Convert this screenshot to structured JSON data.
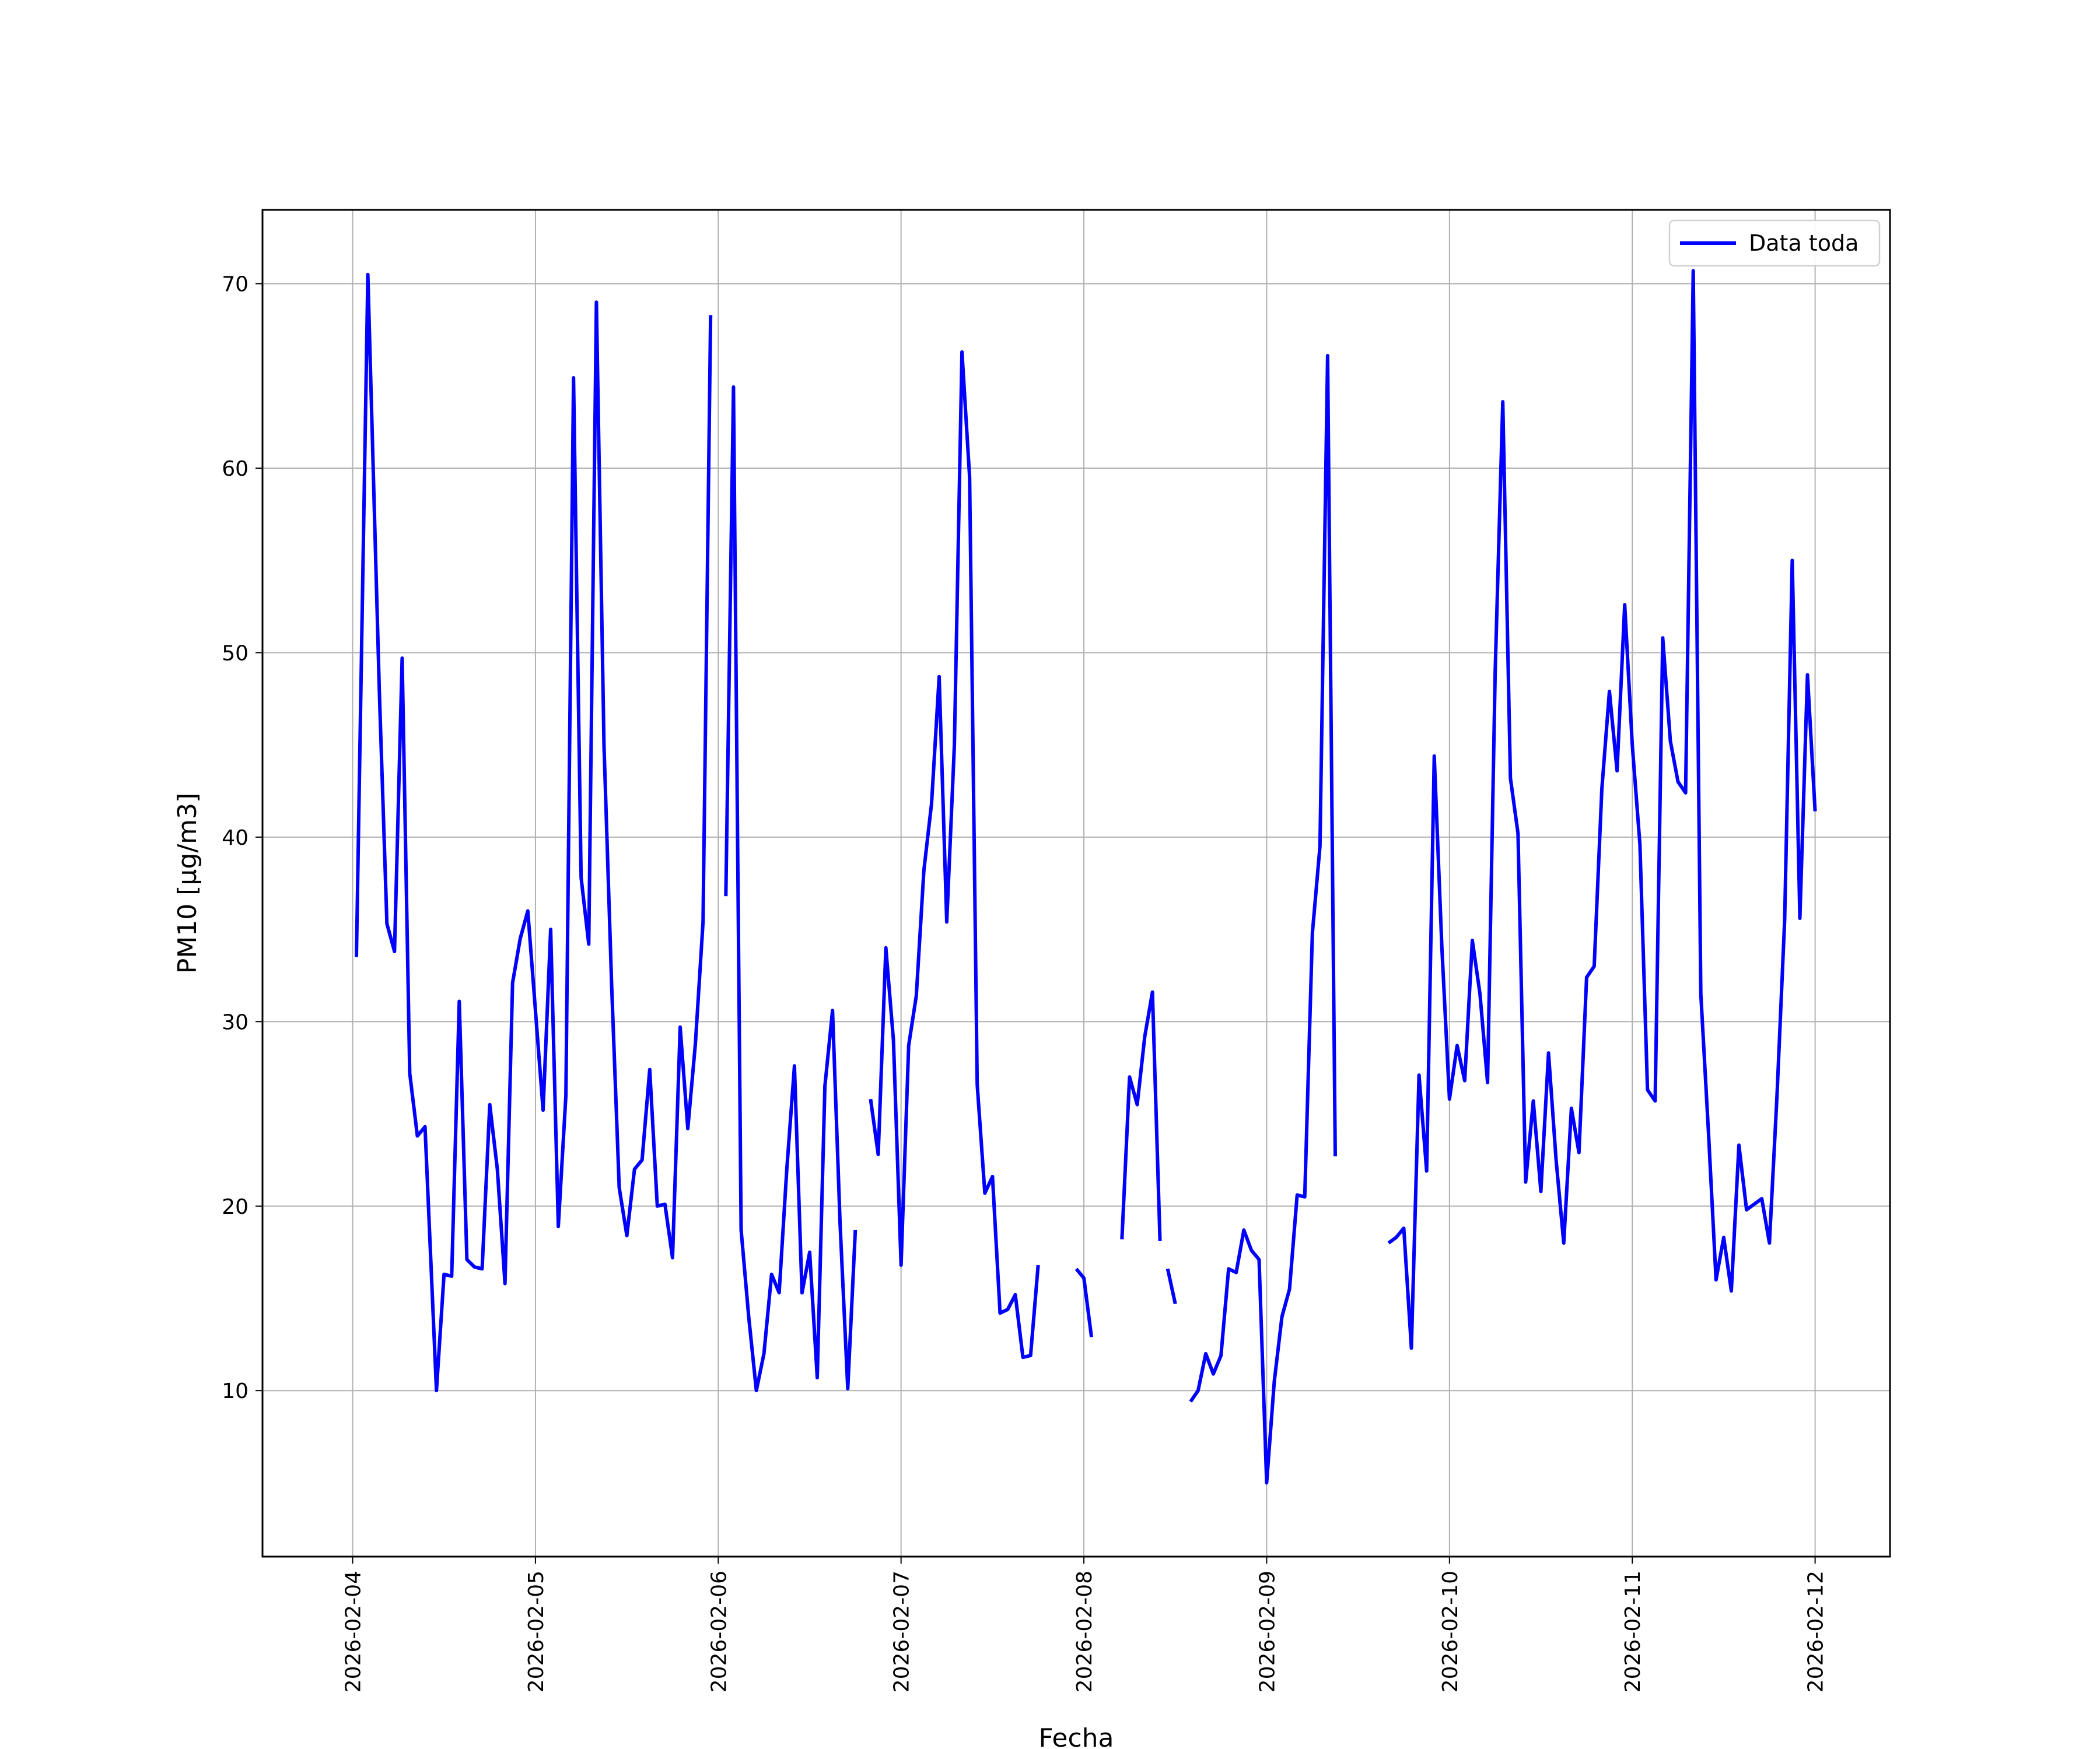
{
  "chart_data": {
    "type": "line",
    "xlabel": "Fecha",
    "ylabel": "PM10 [μg/m3]",
    "x_ticks": [
      "2026-02-04",
      "2026-02-05",
      "2026-02-06",
      "2026-02-07",
      "2026-02-08",
      "2026-02-09",
      "2026-02-10",
      "2026-02-11",
      "2026-02-12"
    ],
    "y_ticks": [
      10,
      20,
      30,
      40,
      50,
      60,
      70
    ],
    "xlim": [
      "2026-02-03T12:10",
      "2026-02-12T09:50"
    ],
    "ylim": [
      1.0,
      74.0
    ],
    "grid": true,
    "legend_position": "top-right",
    "series": [
      {
        "name": "Data toda",
        "color": "#0000ff",
        "segments": [
          [
            [
              "2026-02-04T00:30",
              33.5
            ],
            [
              "2026-02-04T02:00",
              70.5
            ],
            [
              "2026-02-04T03:30",
              48.0
            ],
            [
              "2026-02-04T04:30",
              35.3
            ],
            [
              "2026-02-04T05:30",
              33.8
            ],
            [
              "2026-02-04T06:30",
              49.7
            ],
            [
              "2026-02-04T07:30",
              27.2
            ],
            [
              "2026-02-04T08:30",
              23.8
            ],
            [
              "2026-02-04T09:30",
              24.3
            ],
            [
              "2026-02-04T11:00",
              10.0
            ],
            [
              "2026-02-04T12:00",
              16.3
            ],
            [
              "2026-02-04T13:00",
              16.2
            ],
            [
              "2026-02-04T14:00",
              31.1
            ],
            [
              "2026-02-04T15:00",
              17.1
            ],
            [
              "2026-02-04T16:00",
              16.7
            ],
            [
              "2026-02-04T17:00",
              16.6
            ],
            [
              "2026-02-04T18:00",
              25.5
            ],
            [
              "2026-02-04T19:00",
              22.0
            ],
            [
              "2026-02-04T20:00",
              15.8
            ],
            [
              "2026-02-04T21:00",
              32.1
            ],
            [
              "2026-02-04T22:00",
              34.5
            ],
            [
              "2026-02-04T23:00",
              36.0
            ],
            [
              "2026-02-05T01:00",
              25.2
            ],
            [
              "2026-02-05T02:00",
              35.0
            ],
            [
              "2026-02-05T03:00",
              18.9
            ],
            [
              "2026-02-05T04:00",
              26.0
            ],
            [
              "2026-02-05T05:00",
              64.9
            ],
            [
              "2026-02-05T06:00",
              37.8
            ],
            [
              "2026-02-05T07:00",
              34.2
            ],
            [
              "2026-02-05T08:00",
              69.0
            ],
            [
              "2026-02-05T09:00",
              45.0
            ],
            [
              "2026-02-05T10:00",
              32.0
            ],
            [
              "2026-02-05T11:00",
              21.0
            ],
            [
              "2026-02-05T12:00",
              18.4
            ],
            [
              "2026-02-05T13:00",
              22.0
            ],
            [
              "2026-02-05T14:00",
              22.5
            ],
            [
              "2026-02-05T15:00",
              27.4
            ],
            [
              "2026-02-05T16:00",
              20.0
            ],
            [
              "2026-02-05T17:00",
              20.1
            ],
            [
              "2026-02-05T18:00",
              17.2
            ],
            [
              "2026-02-05T19:00",
              29.7
            ],
            [
              "2026-02-05T20:00",
              24.2
            ],
            [
              "2026-02-05T21:00",
              28.8
            ],
            [
              "2026-02-05T22:00",
              35.4
            ],
            [
              "2026-02-05T23:00",
              68.3
            ]
          ],
          [
            [
              "2026-02-06T01:00",
              36.8
            ],
            [
              "2026-02-06T02:00",
              64.4
            ],
            [
              "2026-02-06T03:00",
              18.7
            ],
            [
              "2026-02-06T04:00",
              14.0
            ],
            [
              "2026-02-06T05:00",
              10.0
            ],
            [
              "2026-02-06T06:00",
              12.0
            ],
            [
              "2026-02-06T07:00",
              16.3
            ],
            [
              "2026-02-06T08:00",
              15.3
            ],
            [
              "2026-02-06T09:00",
              22.0
            ],
            [
              "2026-02-06T10:00",
              27.6
            ],
            [
              "2026-02-06T11:00",
              15.3
            ],
            [
              "2026-02-06T12:00",
              17.5
            ],
            [
              "2026-02-06T13:00",
              10.7
            ],
            [
              "2026-02-06T14:00",
              26.5
            ],
            [
              "2026-02-06T15:00",
              30.6
            ],
            [
              "2026-02-06T16:00",
              19.0
            ],
            [
              "2026-02-06T17:00",
              10.1
            ],
            [
              "2026-02-06T18:00",
              18.7
            ]
          ],
          [
            [
              "2026-02-06T20:00",
              25.8
            ],
            [
              "2026-02-06T21:00",
              22.8
            ],
            [
              "2026-02-06T22:00",
              34.0
            ],
            [
              "2026-02-06T23:00",
              29.0
            ],
            [
              "2026-02-07T00:00",
              16.8
            ],
            [
              "2026-02-07T01:00",
              28.7
            ],
            [
              "2026-02-07T02:00",
              31.4
            ],
            [
              "2026-02-07T03:00",
              38.2
            ],
            [
              "2026-02-07T04:00",
              41.8
            ],
            [
              "2026-02-07T05:00",
              48.7
            ],
            [
              "2026-02-07T06:00",
              35.4
            ],
            [
              "2026-02-07T07:00",
              45.0
            ],
            [
              "2026-02-07T08:00",
              66.3
            ],
            [
              "2026-02-07T09:00",
              59.5
            ],
            [
              "2026-02-07T10:00",
              26.6
            ],
            [
              "2026-02-07T11:00",
              20.7
            ],
            [
              "2026-02-07T12:00",
              21.6
            ],
            [
              "2026-02-07T13:00",
              14.2
            ],
            [
              "2026-02-07T14:00",
              14.4
            ],
            [
              "2026-02-07T15:00",
              15.2
            ],
            [
              "2026-02-07T16:00",
              11.8
            ],
            [
              "2026-02-07T17:00",
              11.9
            ],
            [
              "2026-02-07T18:00",
              16.8
            ]
          ],
          [
            [
              "2026-02-07T23:00",
              16.6
            ],
            [
              "2026-02-08T00:00",
              16.1
            ],
            [
              "2026-02-08T01:00",
              12.9
            ]
          ],
          [
            [
              "2026-02-08T05:00",
              18.2
            ],
            [
              "2026-02-08T06:00",
              27.0
            ],
            [
              "2026-02-08T07:00",
              25.5
            ],
            [
              "2026-02-08T08:00",
              29.2
            ],
            [
              "2026-02-08T09:00",
              31.6
            ],
            [
              "2026-02-08T10:00",
              18.1
            ]
          ],
          [
            [
              "2026-02-08T11:00",
              16.6
            ],
            [
              "2026-02-08T12:00",
              14.7
            ]
          ],
          [
            [
              "2026-02-08T14:00",
              9.4
            ],
            [
              "2026-02-08T15:00",
              10.0
            ],
            [
              "2026-02-08T16:00",
              12.0
            ],
            [
              "2026-02-08T17:00",
              10.9
            ],
            [
              "2026-02-08T18:00",
              11.9
            ],
            [
              "2026-02-08T19:00",
              16.6
            ],
            [
              "2026-02-08T20:00",
              16.4
            ],
            [
              "2026-02-08T21:00",
              18.7
            ],
            [
              "2026-02-08T22:00",
              17.6
            ],
            [
              "2026-02-08T23:00",
              17.1
            ],
            [
              "2026-02-09T00:00",
              5.0
            ],
            [
              "2026-02-09T01:00",
              10.5
            ],
            [
              "2026-02-09T02:00",
              14.0
            ],
            [
              "2026-02-09T03:00",
              15.5
            ],
            [
              "2026-02-09T04:00",
              20.6
            ],
            [
              "2026-02-09T05:00",
              20.5
            ],
            [
              "2026-02-09T06:00",
              34.8
            ],
            [
              "2026-02-09T07:00",
              39.5
            ],
            [
              "2026-02-09T08:00",
              66.1
            ],
            [
              "2026-02-09T09:00",
              22.7
            ]
          ],
          [
            [
              "2026-02-09T16:00",
              18.0
            ],
            [
              "2026-02-09T17:00",
              18.3
            ],
            [
              "2026-02-09T18:00",
              18.8
            ],
            [
              "2026-02-09T19:00",
              12.3
            ],
            [
              "2026-02-09T20:00",
              27.1
            ],
            [
              "2026-02-09T21:00",
              21.9
            ],
            [
              "2026-02-09T22:00",
              44.4
            ],
            [
              "2026-02-09T23:00",
              34.0
            ],
            [
              "2026-02-10T00:00",
              25.8
            ],
            [
              "2026-02-10T01:00",
              28.7
            ],
            [
              "2026-02-10T02:00",
              26.8
            ],
            [
              "2026-02-10T03:00",
              34.4
            ],
            [
              "2026-02-10T04:00",
              31.5
            ],
            [
              "2026-02-10T05:00",
              26.7
            ],
            [
              "2026-02-10T06:00",
              49.0
            ],
            [
              "2026-02-10T07:00",
              63.6
            ],
            [
              "2026-02-10T08:00",
              43.2
            ],
            [
              "2026-02-10T09:00",
              40.2
            ],
            [
              "2026-02-10T10:00",
              21.3
            ],
            [
              "2026-02-10T11:00",
              25.7
            ],
            [
              "2026-02-10T12:00",
              20.8
            ],
            [
              "2026-02-10T13:00",
              28.3
            ],
            [
              "2026-02-10T14:00",
              22.5
            ],
            [
              "2026-02-10T15:00",
              18.0
            ],
            [
              "2026-02-10T16:00",
              25.3
            ],
            [
              "2026-02-10T17:00",
              22.9
            ],
            [
              "2026-02-10T18:00",
              32.4
            ],
            [
              "2026-02-10T19:00",
              33.0
            ],
            [
              "2026-02-10T20:00",
              42.6
            ],
            [
              "2026-02-10T21:00",
              47.9
            ],
            [
              "2026-02-10T22:00",
              43.6
            ],
            [
              "2026-02-10T23:00",
              52.6
            ],
            [
              "2026-02-11T00:00",
              45.0
            ],
            [
              "2026-02-11T01:00",
              39.6
            ],
            [
              "2026-02-11T02:00",
              26.3
            ],
            [
              "2026-02-11T03:00",
              25.7
            ],
            [
              "2026-02-11T04:00",
              50.8
            ],
            [
              "2026-02-11T05:00",
              45.2
            ],
            [
              "2026-02-11T06:00",
              43.0
            ],
            [
              "2026-02-11T07:00",
              42.4
            ],
            [
              "2026-02-11T08:00",
              70.7
            ],
            [
              "2026-02-11T09:00",
              31.5
            ],
            [
              "2026-02-11T10:00",
              24.0
            ],
            [
              "2026-02-11T11:00",
              16.0
            ],
            [
              "2026-02-11T12:00",
              18.3
            ],
            [
              "2026-02-11T13:00",
              15.4
            ],
            [
              "2026-02-11T14:00",
              23.3
            ],
            [
              "2026-02-11T15:00",
              19.8
            ],
            [
              "2026-02-11T16:00",
              20.1
            ],
            [
              "2026-02-11T17:00",
              20.4
            ],
            [
              "2026-02-11T18:00",
              18.0
            ],
            [
              "2026-02-11T19:00",
              26.0
            ],
            [
              "2026-02-11T20:00",
              35.5
            ],
            [
              "2026-02-11T21:00",
              55.0
            ],
            [
              "2026-02-11T22:00",
              35.6
            ],
            [
              "2026-02-11T23:00",
              48.8
            ],
            [
              "2026-02-12T00:00",
              41.4
            ]
          ]
        ]
      }
    ]
  }
}
